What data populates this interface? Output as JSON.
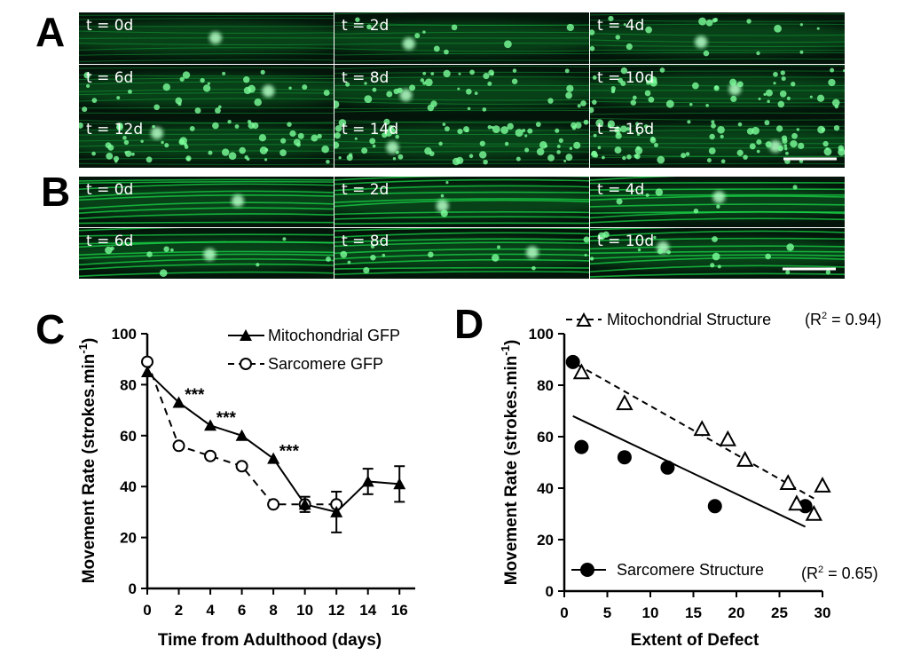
{
  "panel_letters": [
    "A",
    "B",
    "C",
    "D"
  ],
  "micrographs": {
    "A": {
      "color": "#19e04a",
      "labels": [
        "t = 0d",
        "t = 2d",
        "t = 4d",
        "t = 6d",
        "t = 8d",
        "t = 10d",
        "t = 12d",
        "t = 14d",
        "t = 16d"
      ]
    },
    "B": {
      "color": "#19e04a",
      "labels": [
        "t = 0d",
        "t = 2d",
        "t = 4d",
        "t = 6d",
        "t = 8d",
        "t = 10d"
      ]
    }
  },
  "chart_data": [
    {
      "panel": "C",
      "type": "line",
      "title": "",
      "xlabel": "Time from Adulthood (days)",
      "ylabel": "Movement Rate (strokes.min",
      "ylabel_superscript": "-1",
      "ylabel_close": ")",
      "xlim": [
        0,
        17
      ],
      "ylim": [
        0,
        100
      ],
      "xticks": [
        0,
        2,
        4,
        6,
        8,
        10,
        12,
        14,
        16
      ],
      "xtick_labels": [
        "0",
        "2",
        "4",
        "6",
        "8",
        "10",
        "12",
        "14",
        "16"
      ],
      "yticks": [
        0,
        20,
        40,
        60,
        80,
        100
      ],
      "ytick_labels": [
        "0",
        "20",
        "40",
        "60",
        "80",
        "100"
      ],
      "legend_position": "top-right",
      "series": [
        {
          "name": "Mitochondrial GFP",
          "marker": "filled-triangle",
          "line": "solid",
          "x": [
            0,
            2,
            4,
            6,
            8,
            10,
            12,
            14,
            16
          ],
          "values": [
            85,
            73,
            64,
            60,
            51,
            33,
            30,
            42,
            41
          ],
          "error": [
            0,
            0,
            0,
            0,
            0,
            3,
            8,
            5,
            7
          ]
        },
        {
          "name": "Sarcomere GFP",
          "marker": "open-circle",
          "line": "dashed",
          "x": [
            0,
            2,
            4,
            6,
            8,
            10,
            12
          ],
          "values": [
            89,
            56,
            52,
            48,
            33,
            33,
            33
          ],
          "error": [
            0,
            0,
            0,
            0,
            0,
            0,
            0
          ]
        }
      ],
      "annotations": [
        {
          "text": "***",
          "x": 3,
          "y": 78
        },
        {
          "text": "***",
          "x": 5,
          "y": 69
        },
        {
          "text": "***",
          "x": 9,
          "y": 56
        }
      ]
    },
    {
      "panel": "D",
      "type": "scatter",
      "title": "",
      "xlabel": "Extent of Defect",
      "ylabel": "Movement Rate (strokes.min",
      "ylabel_superscript": "-1",
      "ylabel_close": ")",
      "xlim": [
        0,
        30
      ],
      "ylim": [
        0,
        100
      ],
      "xticks": [
        0,
        5,
        10,
        15,
        20,
        25,
        30
      ],
      "xtick_labels": [
        "0",
        "5",
        "10",
        "15",
        "20",
        "25",
        "30"
      ],
      "yticks": [
        0,
        20,
        40,
        60,
        80,
        100
      ],
      "ytick_labels": [
        "0",
        "20",
        "40",
        "60",
        "80",
        "100"
      ],
      "legend_position": "top-left and bottom-left",
      "series": [
        {
          "name": "Mitochondrial Structure",
          "r2_prefix": "(R",
          "r2_exp": "2",
          "r2_suffix": " = 0.94)",
          "marker": "open-triangle",
          "fit_line": "dashed",
          "x": [
            2,
            7,
            16,
            19,
            21,
            26,
            27,
            29,
            30
          ],
          "values": [
            85,
            73,
            63,
            59,
            51,
            42,
            34,
            30,
            41
          ],
          "fit": {
            "x": [
              1.5,
              29
            ],
            "y": [
              88,
              36
            ]
          }
        },
        {
          "name": "Sarcomere Structure",
          "r2_prefix": "(R",
          "r2_exp": "2",
          "r2_suffix": " = 0.65)",
          "marker": "filled-circle",
          "fit_line": "solid",
          "x": [
            1,
            2,
            7,
            12,
            17.5,
            28
          ],
          "values": [
            89,
            56,
            52,
            48,
            33,
            33
          ],
          "fit": {
            "x": [
              1,
              28
            ],
            "y": [
              68,
              25
            ]
          }
        }
      ]
    }
  ]
}
